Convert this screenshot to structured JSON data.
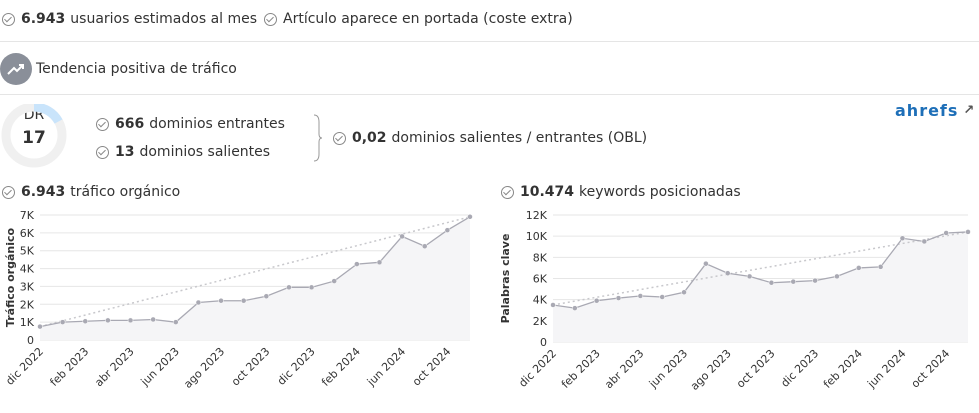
{
  "header": {
    "items": [
      {
        "strong": "6.943",
        "text": "usuarios estimados al mes"
      },
      {
        "text": "Artículo aparece en portada (coste extra)"
      }
    ]
  },
  "trend": {
    "text": "Tendencia positiva de tráfico"
  },
  "domain": {
    "dr_label": "DR",
    "dr": 17,
    "incoming": {
      "strong": "666",
      "text": "dominios entrantes"
    },
    "outgoing": {
      "strong": "13",
      "text": "dominios salientes"
    },
    "obl": {
      "strong": "0,02",
      "text": "dominios salientes / entrantes (OBL)"
    },
    "brand": "ahrefs"
  },
  "charts": [
    {
      "type": "line",
      "title_value": "6.943",
      "title_text": "tráfico orgánico",
      "ylabel": "Tráfico orgánico",
      "color": "#a9a9b3",
      "categories": [
        "dic 2022",
        null,
        "feb 2023",
        null,
        "abr 2023",
        null,
        "jun 2023",
        null,
        "ago 2023",
        null,
        "oct 2023",
        null,
        "dic 2023",
        null,
        "feb 2024",
        null,
        "jun 2024",
        null,
        "oct 2024",
        null
      ],
      "values": [
        750,
        1000,
        1050,
        1100,
        1100,
        1150,
        1000,
        2100,
        2200,
        2200,
        2450,
        2950,
        2950,
        3300,
        4250,
        4350,
        5800,
        5250,
        6150,
        6900
      ],
      "ylim": [
        0,
        7000
      ],
      "yticks": [
        0,
        {
          "value": 1000,
          "label": "1K"
        },
        {
          "value": 2000,
          "label": "2K"
        },
        {
          "value": 3000,
          "label": "3K"
        },
        {
          "value": 4000,
          "label": "4K"
        },
        {
          "value": 5000,
          "label": "5K"
        },
        {
          "value": 6000,
          "label": "6K"
        },
        {
          "value": 7000,
          "label": "7K"
        }
      ]
    },
    {
      "type": "line",
      "title_value": "10.474",
      "title_text": "keywords posicionadas",
      "ylabel": "Palabras clave",
      "color": "#a9a9b3",
      "categories": [
        "dic 2022",
        null,
        "feb 2023",
        null,
        "abr 2023",
        null,
        "jun 2023",
        null,
        "ago 2023",
        null,
        "oct 2023",
        null,
        "dic 2023",
        null,
        "feb 2024",
        null,
        "jun 2024",
        null,
        "oct 2024",
        null
      ],
      "values": [
        3500,
        3200,
        3900,
        4150,
        4350,
        4250,
        4700,
        7400,
        6500,
        6200,
        5600,
        5700,
        5800,
        6200,
        7000,
        7100,
        9800,
        9500,
        10300,
        10400
      ],
      "ylim": [
        0,
        12000
      ],
      "yticks": [
        0,
        {
          "value": 2000,
          "label": "2K"
        },
        {
          "value": 4000,
          "label": "4K"
        },
        {
          "value": 6000,
          "label": "6K"
        },
        {
          "value": 8000,
          "label": "8K"
        },
        {
          "value": 10000,
          "label": "10K"
        },
        {
          "value": 12000,
          "label": "12K"
        }
      ]
    }
  ]
}
